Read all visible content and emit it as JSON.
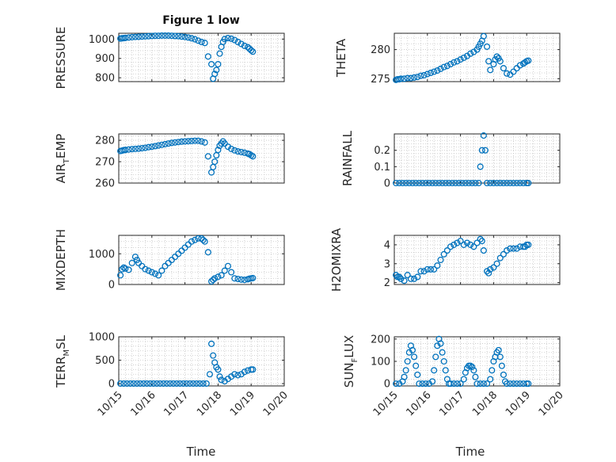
{
  "figure": {
    "marker_color": "#0072BD"
  },
  "chart_data": [
    {
      "type": "scatter",
      "title": "Figure 1 low",
      "ylabel": "PRESSURE",
      "xlabel": "",
      "xlim": [
        0,
        5
      ],
      "ylim": [
        780,
        1030
      ],
      "yticks": [
        800,
        900,
        1000
      ],
      "yticklabels": [
        "800",
        "900",
        "1000"
      ],
      "xticks": [
        0,
        1,
        2,
        3,
        4,
        5
      ],
      "xticklabels": [],
      "x": [
        0.05,
        0.1,
        0.15,
        0.2,
        0.3,
        0.4,
        0.5,
        0.6,
        0.7,
        0.8,
        0.9,
        1.0,
        1.1,
        1.2,
        1.3,
        1.4,
        1.5,
        1.6,
        1.7,
        1.8,
        1.9,
        2.0,
        2.1,
        2.2,
        2.3,
        2.4,
        2.5,
        2.6,
        2.7,
        2.8,
        2.85,
        2.9,
        2.95,
        3.0,
        3.05,
        3.1,
        3.15,
        3.2,
        3.3,
        3.4,
        3.5,
        3.6,
        3.7,
        3.8,
        3.9,
        3.95,
        4.0,
        4.05
      ],
      "y": [
        1003,
        1004,
        1005,
        1006,
        1008,
        1010,
        1011,
        1012,
        1013,
        1014,
        1015,
        1016,
        1017,
        1017,
        1018,
        1018,
        1018,
        1017,
        1016,
        1015,
        1013,
        1011,
        1008,
        1004,
        999,
        992,
        985,
        980,
        910,
        870,
        795,
        820,
        840,
        870,
        925,
        960,
        985,
        1000,
        1005,
        1002,
        995,
        985,
        975,
        965,
        958,
        950,
        942,
        935
      ]
    },
    {
      "type": "scatter",
      "title": "",
      "ylabel": "THETA",
      "xlabel": "",
      "xlim": [
        0,
        5
      ],
      "ylim": [
        274.5,
        282.8
      ],
      "yticks": [
        275,
        280
      ],
      "yticklabels": [
        "275",
        "280"
      ],
      "xticks": [
        0,
        1,
        2,
        3,
        4,
        5
      ],
      "xticklabels": [],
      "x": [
        0.05,
        0.1,
        0.15,
        0.2,
        0.3,
        0.4,
        0.5,
        0.6,
        0.7,
        0.8,
        0.9,
        1.0,
        1.1,
        1.2,
        1.3,
        1.4,
        1.5,
        1.6,
        1.7,
        1.8,
        1.9,
        2.0,
        2.1,
        2.2,
        2.3,
        2.4,
        2.5,
        2.55,
        2.6,
        2.65,
        2.7,
        2.8,
        2.85,
        2.9,
        3.0,
        3.05,
        3.1,
        3.15,
        3.2,
        3.3,
        3.4,
        3.5,
        3.6,
        3.7,
        3.8,
        3.9,
        3.95,
        4.0,
        4.05
      ],
      "y": [
        274.8,
        274.9,
        274.9,
        275.0,
        275.0,
        275.1,
        275.1,
        275.2,
        275.3,
        275.5,
        275.6,
        275.8,
        276.0,
        276.2,
        276.4,
        276.7,
        277.0,
        277.2,
        277.5,
        277.8,
        278.0,
        278.3,
        278.6,
        278.9,
        279.3,
        279.6,
        280.0,
        280.5,
        281.0,
        281.5,
        282.3,
        280.5,
        278.0,
        276.5,
        277.5,
        278.3,
        278.8,
        278.5,
        278.0,
        276.8,
        275.9,
        275.7,
        276.2,
        276.8,
        277.3,
        277.6,
        277.8,
        278.0,
        278.1
      ]
    },
    {
      "type": "scatter",
      "title": "",
      "ylabel": "AIR_TEMP",
      "xlabel": "",
      "xlim": [
        0,
        5
      ],
      "ylim": [
        260,
        283
      ],
      "yticks": [
        260,
        270,
        280
      ],
      "yticklabels": [
        "260",
        "270",
        "280"
      ],
      "xticks": [
        0,
        1,
        2,
        3,
        4,
        5
      ],
      "xticklabels": [],
      "x": [
        0.05,
        0.1,
        0.15,
        0.2,
        0.3,
        0.4,
        0.5,
        0.6,
        0.7,
        0.8,
        0.9,
        1.0,
        1.1,
        1.2,
        1.3,
        1.4,
        1.5,
        1.6,
        1.7,
        1.8,
        1.9,
        2.0,
        2.1,
        2.2,
        2.3,
        2.4,
        2.5,
        2.6,
        2.7,
        2.8,
        2.85,
        2.9,
        2.95,
        3.0,
        3.05,
        3.1,
        3.15,
        3.2,
        3.3,
        3.4,
        3.5,
        3.6,
        3.7,
        3.8,
        3.9,
        3.95,
        4.0,
        4.05
      ],
      "y": [
        275.0,
        275.2,
        275.4,
        275.5,
        275.7,
        275.9,
        276.0,
        276.1,
        276.3,
        276.5,
        276.8,
        277.0,
        277.3,
        277.6,
        277.9,
        278.2,
        278.5,
        278.8,
        279.0,
        279.2,
        279.4,
        279.5,
        279.6,
        279.7,
        279.8,
        279.8,
        279.5,
        279.0,
        272.5,
        265.0,
        267.5,
        270.0,
        273.0,
        275.5,
        277.5,
        278.5,
        279.5,
        278.5,
        277.0,
        276.0,
        275.3,
        274.8,
        274.5,
        274.2,
        273.8,
        273.5,
        273.0,
        272.5
      ]
    },
    {
      "type": "scatter",
      "title": "",
      "ylabel": "RAINFALL",
      "xlabel": "",
      "xlim": [
        0,
        5
      ],
      "ylim": [
        0,
        0.3
      ],
      "yticks": [
        0,
        0.1,
        0.2
      ],
      "yticklabels": [
        "0",
        "0.1",
        "0.2"
      ],
      "xticks": [
        0,
        1,
        2,
        3,
        4,
        5
      ],
      "xticklabels": [],
      "x": [
        0.05,
        0.15,
        0.25,
        0.35,
        0.45,
        0.55,
        0.65,
        0.75,
        0.85,
        0.95,
        1.05,
        1.15,
        1.25,
        1.35,
        1.45,
        1.55,
        1.65,
        1.75,
        1.85,
        1.95,
        2.05,
        2.15,
        2.25,
        2.35,
        2.45,
        2.55,
        2.6,
        2.65,
        2.7,
        2.75,
        2.8,
        2.9,
        3.0,
        3.1,
        3.2,
        3.3,
        3.4,
        3.5,
        3.6,
        3.7,
        3.8,
        3.9,
        4.0,
        4.05
      ],
      "y": [
        0,
        0,
        0,
        0,
        0,
        0,
        0,
        0,
        0,
        0,
        0,
        0,
        0,
        0,
        0,
        0,
        0,
        0,
        0,
        0,
        0,
        0,
        0,
        0,
        0,
        0,
        0.1,
        0.2,
        0.29,
        0.2,
        0,
        0,
        0,
        0,
        0,
        0,
        0,
        0,
        0,
        0,
        0,
        0,
        0,
        0
      ]
    },
    {
      "type": "scatter",
      "title": "",
      "ylabel": "MIXDEPTH",
      "xlabel": "",
      "xlim": [
        0,
        5
      ],
      "ylim": [
        0,
        1600
      ],
      "yticks": [
        0,
        1000
      ],
      "yticklabels": [
        "0",
        "1000"
      ],
      "xticks": [
        0,
        1,
        2,
        3,
        4,
        5
      ],
      "xticklabels": [],
      "x": [
        0.05,
        0.1,
        0.15,
        0.2,
        0.3,
        0.4,
        0.5,
        0.55,
        0.6,
        0.7,
        0.8,
        0.9,
        1.0,
        1.1,
        1.2,
        1.3,
        1.4,
        1.5,
        1.6,
        1.7,
        1.8,
        1.9,
        2.0,
        2.1,
        2.2,
        2.3,
        2.4,
        2.5,
        2.55,
        2.6,
        2.7,
        2.8,
        2.85,
        2.9,
        3.0,
        3.1,
        3.2,
        3.3,
        3.4,
        3.5,
        3.6,
        3.7,
        3.8,
        3.9,
        3.95,
        4.0,
        4.05
      ],
      "y": [
        300,
        500,
        550,
        520,
        480,
        700,
        900,
        800,
        700,
        600,
        500,
        450,
        400,
        350,
        300,
        450,
        600,
        700,
        800,
        900,
        1000,
        1100,
        1200,
        1300,
        1400,
        1450,
        1500,
        1500,
        1450,
        1400,
        1050,
        100,
        150,
        200,
        250,
        300,
        450,
        600,
        400,
        200,
        180,
        160,
        150,
        170,
        190,
        200,
        210
      ]
    },
    {
      "type": "scatter",
      "title": "",
      "ylabel": "H2OMIXRA",
      "xlabel": "",
      "xlim": [
        0,
        5
      ],
      "ylim": [
        1.9,
        4.5
      ],
      "yticks": [
        2,
        3,
        4
      ],
      "yticklabels": [
        "2",
        "3",
        "4"
      ],
      "xticks": [
        0,
        1,
        2,
        3,
        4,
        5
      ],
      "xticklabels": [],
      "x": [
        0.05,
        0.1,
        0.15,
        0.2,
        0.3,
        0.4,
        0.5,
        0.6,
        0.7,
        0.8,
        0.9,
        1.0,
        1.1,
        1.2,
        1.3,
        1.4,
        1.5,
        1.6,
        1.7,
        1.8,
        1.9,
        2.0,
        2.1,
        2.2,
        2.3,
        2.4,
        2.5,
        2.6,
        2.65,
        2.7,
        2.8,
        2.85,
        2.9,
        3.0,
        3.1,
        3.2,
        3.3,
        3.4,
        3.5,
        3.6,
        3.7,
        3.8,
        3.9,
        3.95,
        4.0,
        4.05
      ],
      "y": [
        2.4,
        2.3,
        2.3,
        2.2,
        2.1,
        2.4,
        2.2,
        2.2,
        2.3,
        2.6,
        2.6,
        2.7,
        2.7,
        2.7,
        2.9,
        3.2,
        3.5,
        3.7,
        3.9,
        4.0,
        4.1,
        4.2,
        4.0,
        4.1,
        4.0,
        3.9,
        4.1,
        4.3,
        4.2,
        3.7,
        2.6,
        2.5,
        2.7,
        2.8,
        3.0,
        3.3,
        3.5,
        3.7,
        3.8,
        3.8,
        3.8,
        3.9,
        3.9,
        3.9,
        4.0,
        4.0
      ]
    },
    {
      "type": "scatter",
      "title": "",
      "ylabel": "TERR_MSL",
      "xlabel": "Time",
      "xlim": [
        0,
        5
      ],
      "ylim": [
        -50,
        1000
      ],
      "yticks": [
        0,
        500,
        1000
      ],
      "yticklabels": [
        "0",
        "500",
        "1000"
      ],
      "xticks": [
        0,
        1,
        2,
        3,
        4,
        5
      ],
      "xticklabels": [
        "10/15",
        "10/16",
        "10/17",
        "10/18",
        "10/19",
        "10/20"
      ],
      "x": [
        0.05,
        0.15,
        0.25,
        0.35,
        0.45,
        0.55,
        0.65,
        0.75,
        0.85,
        0.95,
        1.05,
        1.15,
        1.25,
        1.35,
        1.45,
        1.55,
        1.65,
        1.75,
        1.85,
        1.95,
        2.05,
        2.15,
        2.25,
        2.35,
        2.45,
        2.55,
        2.65,
        2.75,
        2.8,
        2.85,
        2.9,
        2.95,
        3.0,
        3.05,
        3.1,
        3.2,
        3.3,
        3.4,
        3.5,
        3.6,
        3.7,
        3.8,
        3.9,
        4.0,
        4.05
      ],
      "y": [
        0,
        0,
        0,
        0,
        0,
        0,
        0,
        0,
        0,
        0,
        0,
        0,
        0,
        0,
        0,
        0,
        0,
        0,
        0,
        0,
        0,
        0,
        0,
        0,
        0,
        0,
        0,
        200,
        850,
        600,
        450,
        350,
        300,
        150,
        80,
        50,
        100,
        150,
        200,
        180,
        200,
        250,
        280,
        300,
        300
      ]
    },
    {
      "type": "scatter",
      "title": "",
      "ylabel": "SUN_FLUX",
      "xlabel": "Time",
      "xlim": [
        0,
        5
      ],
      "ylim": [
        -10,
        210
      ],
      "yticks": [
        0,
        100,
        200
      ],
      "yticklabels": [
        "0",
        "100",
        "200"
      ],
      "xticks": [
        0,
        1,
        2,
        3,
        4,
        5
      ],
      "xticklabels": [
        "10/15",
        "10/16",
        "10/17",
        "10/18",
        "10/19",
        "10/20"
      ],
      "x": [
        0.05,
        0.15,
        0.25,
        0.3,
        0.35,
        0.4,
        0.45,
        0.5,
        0.55,
        0.6,
        0.65,
        0.7,
        0.75,
        0.85,
        0.95,
        1.05,
        1.15,
        1.2,
        1.25,
        1.3,
        1.35,
        1.4,
        1.45,
        1.5,
        1.55,
        1.6,
        1.65,
        1.7,
        1.8,
        1.9,
        2.0,
        2.1,
        2.15,
        2.2,
        2.25,
        2.3,
        2.35,
        2.4,
        2.45,
        2.5,
        2.6,
        2.7,
        2.8,
        2.9,
        2.95,
        3.0,
        3.05,
        3.1,
        3.15,
        3.2,
        3.25,
        3.3,
        3.35,
        3.4,
        3.5,
        3.6,
        3.7,
        3.8,
        3.9,
        4.0,
        4.05
      ],
      "y": [
        0,
        0,
        10,
        30,
        60,
        100,
        140,
        170,
        150,
        120,
        80,
        40,
        0,
        0,
        0,
        0,
        10,
        60,
        120,
        170,
        200,
        180,
        140,
        100,
        60,
        20,
        0,
        0,
        0,
        0,
        0,
        20,
        50,
        70,
        80,
        80,
        75,
        60,
        30,
        0,
        0,
        0,
        0,
        20,
        60,
        100,
        120,
        140,
        150,
        120,
        80,
        40,
        10,
        0,
        0,
        0,
        0,
        0,
        0,
        0,
        0
      ]
    }
  ]
}
